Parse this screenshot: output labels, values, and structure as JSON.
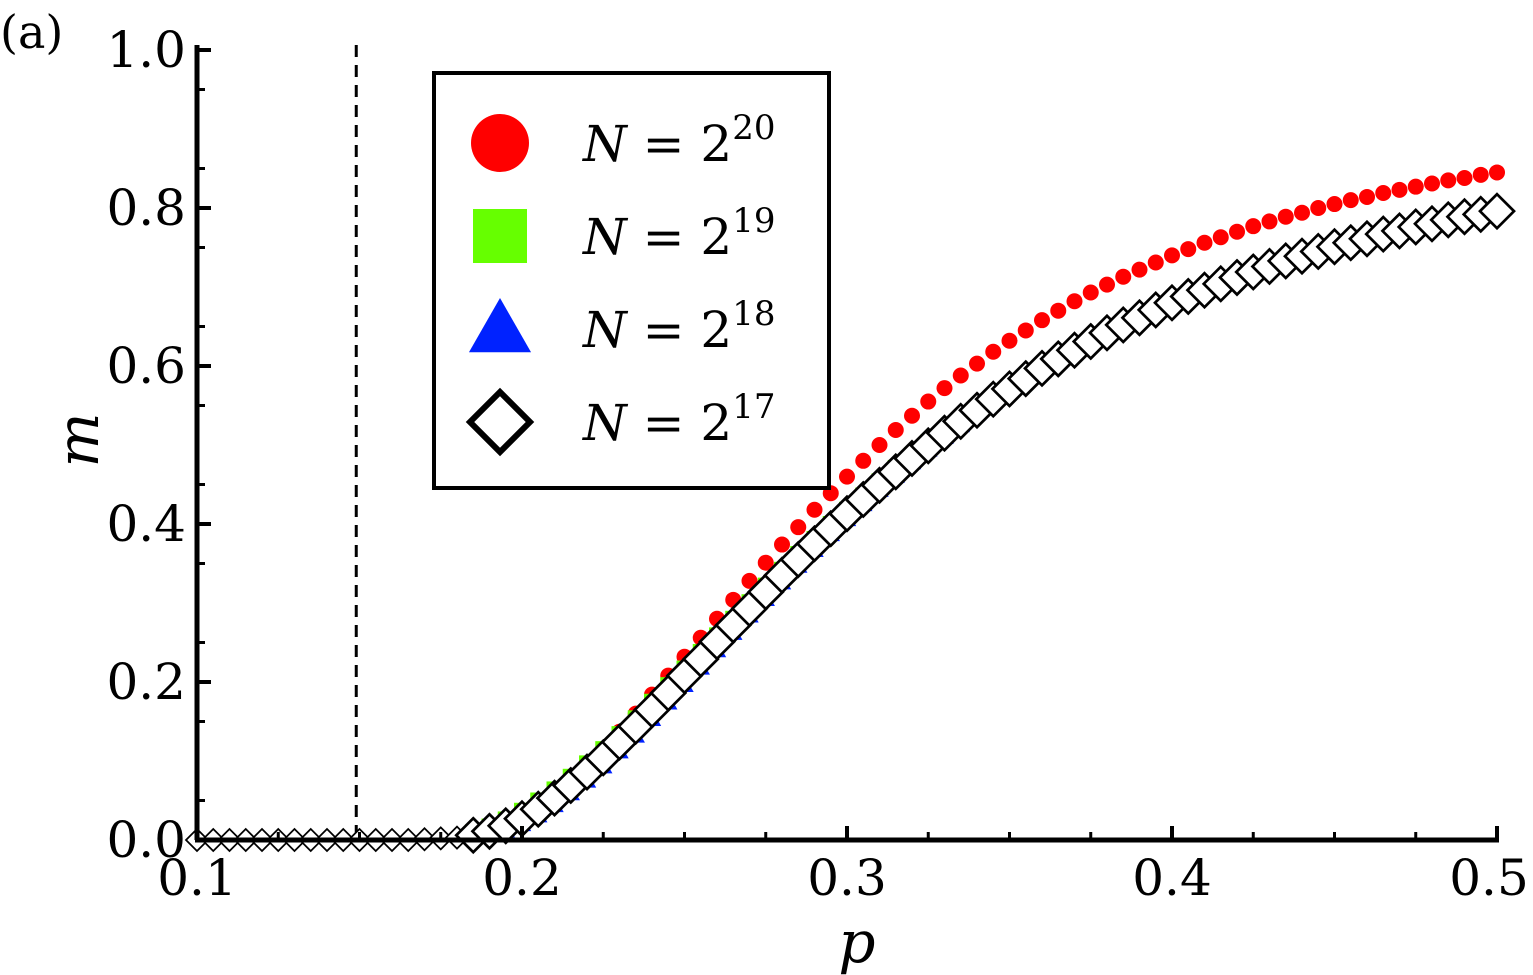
{
  "chart_data": {
    "type": "scatter",
    "panel_label": "(a)",
    "xlabel": "p",
    "ylabel": "m",
    "xlim": [
      0.1,
      0.5
    ],
    "ylim": [
      0.0,
      1.0
    ],
    "xticks": [
      "0.1",
      "0.2",
      "0.3",
      "0.4",
      "0.5"
    ],
    "yticks": [
      "0.0",
      "0.2",
      "0.4",
      "0.6",
      "0.8",
      "1.0"
    ],
    "critical_line_x": 0.149,
    "legend": {
      "placement": "upper-center",
      "entries": [
        {
          "var": "N",
          "eq": " = 2",
          "exp": "20"
        },
        {
          "var": "N",
          "eq": " = 2",
          "exp": "19"
        },
        {
          "var": "N",
          "eq": " = 2",
          "exp": "18"
        },
        {
          "var": "N",
          "eq": " = 2",
          "exp": "17"
        }
      ]
    },
    "x": [
      0.1,
      0.105,
      0.11,
      0.115,
      0.12,
      0.125,
      0.13,
      0.135,
      0.14,
      0.145,
      0.15,
      0.155,
      0.16,
      0.165,
      0.17,
      0.175,
      0.18,
      0.185,
      0.19,
      0.195,
      0.2,
      0.205,
      0.21,
      0.215,
      0.22,
      0.225,
      0.23,
      0.235,
      0.24,
      0.245,
      0.25,
      0.255,
      0.26,
      0.265,
      0.27,
      0.275,
      0.28,
      0.285,
      0.29,
      0.295,
      0.3,
      0.305,
      0.31,
      0.315,
      0.32,
      0.325,
      0.33,
      0.335,
      0.34,
      0.345,
      0.35,
      0.355,
      0.36,
      0.365,
      0.37,
      0.375,
      0.38,
      0.385,
      0.39,
      0.395,
      0.4,
      0.405,
      0.41,
      0.415,
      0.42,
      0.425,
      0.43,
      0.435,
      0.44,
      0.445,
      0.45,
      0.455,
      0.46,
      0.465,
      0.47,
      0.475,
      0.48,
      0.485,
      0.49,
      0.495,
      0.5
    ],
    "series": [
      {
        "label_index": 0,
        "color": "#ff0000",
        "marker": "circle",
        "values": [
          0,
          0,
          0,
          0,
          0,
          0,
          0,
          0,
          0,
          0,
          0,
          0,
          0,
          0,
          0.001,
          0.002,
          0.004,
          0.008,
          0.013,
          0.021,
          0.031,
          0.043,
          0.058,
          0.075,
          0.094,
          0.115,
          0.137,
          0.16,
          0.184,
          0.208,
          0.232,
          0.256,
          0.28,
          0.304,
          0.328,
          0.351,
          0.374,
          0.396,
          0.418,
          0.439,
          0.46,
          0.48,
          0.5,
          0.519,
          0.537,
          0.555,
          0.572,
          0.588,
          0.603,
          0.618,
          0.632,
          0.645,
          0.658,
          0.67,
          0.682,
          0.693,
          0.703,
          0.713,
          0.722,
          0.731,
          0.74,
          0.748,
          0.756,
          0.763,
          0.77,
          0.777,
          0.783,
          0.789,
          0.794,
          0.8,
          0.805,
          0.81,
          0.814,
          0.819,
          0.823,
          0.827,
          0.831,
          0.835,
          0.838,
          0.842,
          0.845
        ]
      },
      {
        "label_index": 1,
        "color": "#66ff00",
        "marker": "square",
        "values": [
          0,
          0,
          0,
          0,
          0,
          0,
          0,
          0,
          0,
          0,
          0,
          0,
          0,
          0,
          0.001,
          0.002,
          0.005,
          0.01,
          0.017,
          0.026,
          0.037,
          0.05,
          0.064,
          0.08,
          0.097,
          0.115,
          0.134,
          0.154,
          0.175,
          0.196,
          0.217,
          0.238,
          0.259,
          0.28,
          0.301,
          0.322,
          0.342,
          0.362,
          0.381,
          0.4,
          0.418,
          0.436,
          0.454,
          0.471,
          0.487,
          0.503,
          0.518,
          0.533,
          0.547,
          0.561,
          0.574,
          0.587,
          0.599,
          0.611,
          0.622,
          0.633,
          0.644,
          0.654,
          0.663,
          0.673,
          0.682,
          0.69,
          0.698,
          0.706,
          0.714,
          0.721,
          0.728,
          0.734,
          0.741,
          0.747,
          0.752,
          0.758,
          0.763,
          0.768,
          0.773,
          0.778,
          0.782,
          0.786,
          0.791,
          0.795,
          0.798
        ]
      },
      {
        "label_index": 2,
        "color": "#0022ff",
        "marker": "triangle",
        "values": [
          0,
          0,
          0,
          0,
          0,
          0,
          0,
          0,
          0,
          0,
          0,
          0,
          0,
          0,
          0.0,
          0.001,
          0.002,
          0.004,
          0.007,
          0.012,
          0.02,
          0.031,
          0.044,
          0.059,
          0.075,
          0.093,
          0.112,
          0.132,
          0.153,
          0.174,
          0.196,
          0.218,
          0.24,
          0.262,
          0.284,
          0.305,
          0.326,
          0.347,
          0.367,
          0.387,
          0.406,
          0.425,
          0.443,
          0.461,
          0.478,
          0.494,
          0.51,
          0.525,
          0.54,
          0.554,
          0.568,
          0.581,
          0.593,
          0.605,
          0.617,
          0.628,
          0.639,
          0.649,
          0.659,
          0.668,
          0.677,
          0.686,
          0.694,
          0.702,
          0.71,
          0.717,
          0.724,
          0.731,
          0.737,
          0.743,
          0.749,
          0.755,
          0.76,
          0.765,
          0.77,
          0.775,
          0.779,
          0.784,
          0.788,
          0.792,
          0.795
        ]
      },
      {
        "label_index": 3,
        "color": "#000000",
        "marker": "diamond-open",
        "values": [
          0,
          0,
          0,
          0,
          0,
          0,
          0,
          0,
          0,
          0,
          0,
          0,
          0,
          0,
          0.001,
          0.002,
          0.003,
          0.006,
          0.011,
          0.018,
          0.027,
          0.039,
          0.053,
          0.069,
          0.086,
          0.104,
          0.124,
          0.144,
          0.165,
          0.186,
          0.208,
          0.229,
          0.251,
          0.272,
          0.293,
          0.314,
          0.335,
          0.355,
          0.375,
          0.394,
          0.413,
          0.431,
          0.449,
          0.466,
          0.483,
          0.499,
          0.515,
          0.53,
          0.544,
          0.558,
          0.571,
          0.584,
          0.597,
          0.609,
          0.62,
          0.631,
          0.642,
          0.652,
          0.661,
          0.671,
          0.68,
          0.688,
          0.696,
          0.704,
          0.712,
          0.719,
          0.726,
          0.733,
          0.739,
          0.745,
          0.751,
          0.756,
          0.761,
          0.767,
          0.771,
          0.776,
          0.78,
          0.785,
          0.789,
          0.792,
          0.796
        ]
      }
    ]
  }
}
